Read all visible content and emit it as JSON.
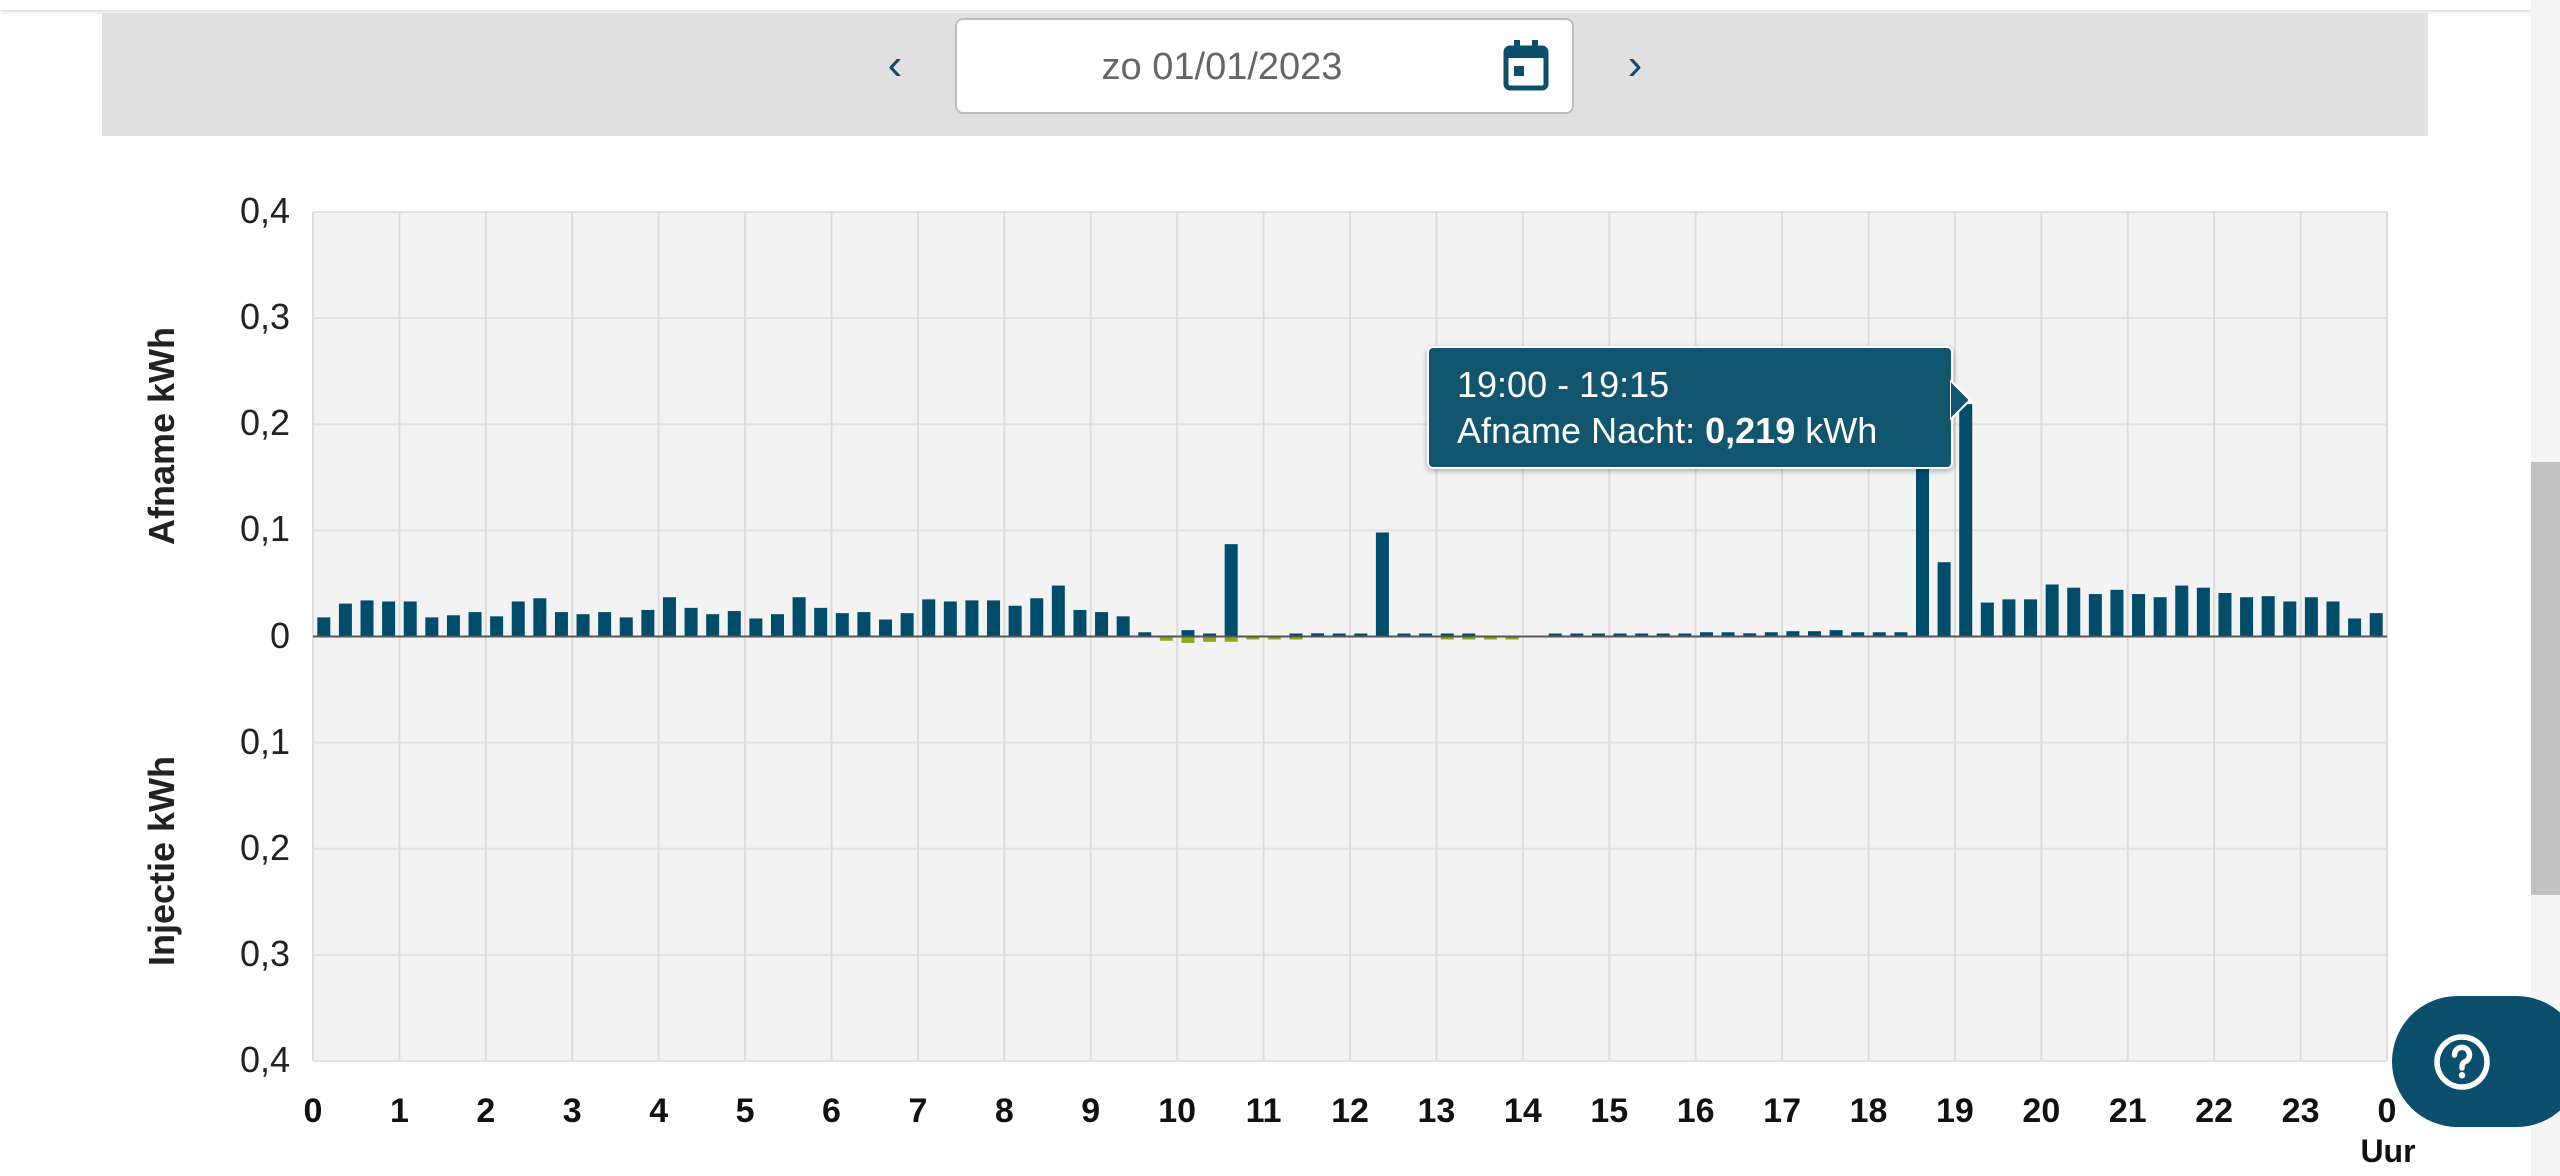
{
  "date_nav": {
    "date": "zo 01/01/2023",
    "prev_icon": "chevron-left-icon",
    "next_icon": "chevron-right-icon",
    "calendar_icon": "calendar-icon"
  },
  "colors": {
    "afname": "#004d6b",
    "injectie": "#8aac1c",
    "tooltip": "#11556e",
    "plot_bg": "#f3f3f3"
  },
  "chart_data": {
    "type": "bar",
    "ylabel_top": "Afname  kWh",
    "ylabel_bottom": "Injectie  kWh",
    "xlabel": "Uur",
    "ylim": [
      -0.4,
      0.4
    ],
    "yticks": [
      "0,4",
      "0,3",
      "0,2",
      "0,1",
      "0",
      "0,1",
      "0,2",
      "0,3",
      "0,4"
    ],
    "xticks": [
      "0",
      "1",
      "2",
      "3",
      "4",
      "5",
      "6",
      "7",
      "8",
      "9",
      "10",
      "11",
      "12",
      "13",
      "14",
      "15",
      "16",
      "17",
      "18",
      "19",
      "20",
      "21",
      "22",
      "23",
      "0"
    ],
    "grid": true,
    "interval_hours": 0.25,
    "series": [
      {
        "key": "afname",
        "values": [
          0.018,
          0.031,
          0.034,
          0.033,
          0.033,
          0.018,
          0.02,
          0.023,
          0.019,
          0.033,
          0.036,
          0.023,
          0.021,
          0.023,
          0.018,
          0.025,
          0.037,
          0.027,
          0.021,
          0.024,
          0.017,
          0.021,
          0.037,
          0.027,
          0.022,
          0.023,
          0.016,
          0.022,
          0.035,
          0.033,
          0.034,
          0.034,
          0.029,
          0.036,
          0.048,
          0.025,
          0.023,
          0.019,
          0.004,
          0,
          0.006,
          0.002,
          0.087,
          0,
          0,
          0.001,
          0.003,
          0.002,
          0.001,
          0.098,
          0.002,
          0.001,
          0.001,
          0.001,
          0,
          0,
          0,
          0.001,
          0.001,
          0.001,
          0.002,
          0.002,
          0.001,
          0.002,
          0.004,
          0.004,
          0.003,
          0.004,
          0.005,
          0.005,
          0.006,
          0.004,
          0.004,
          0.004,
          0.18,
          0.07,
          0.219,
          0.032,
          0.035,
          0.035,
          0.049,
          0.046,
          0.04,
          0.044,
          0.04,
          0.037,
          0.048,
          0.046,
          0.041,
          0.037,
          0.038,
          0.033,
          0.037,
          0.033,
          0.017,
          0.022
        ]
      },
      {
        "key": "injectie",
        "values": [
          0,
          0,
          0,
          0,
          0,
          0,
          0,
          0,
          0,
          0,
          0,
          0,
          0,
          0,
          0,
          0,
          0,
          0,
          0,
          0,
          0,
          0,
          0,
          0,
          0,
          0,
          0,
          0,
          0,
          0,
          0,
          0,
          0,
          0,
          0,
          0,
          0,
          0,
          0,
          0.004,
          0.006,
          0.005,
          0.005,
          0.002,
          0.002,
          0.001,
          0,
          0,
          0,
          0,
          0,
          0,
          0.001,
          0.001,
          0.001,
          0.002,
          0,
          0,
          0,
          0,
          0,
          0,
          0,
          0,
          0,
          0,
          0,
          0,
          0,
          0,
          0,
          0,
          0,
          0,
          0,
          0,
          0,
          0,
          0,
          0,
          0,
          0,
          0,
          0,
          0,
          0,
          0,
          0,
          0,
          0,
          0,
          0,
          0,
          0,
          0,
          0
        ]
      }
    ]
  },
  "tooltip": {
    "time": "19:00 - 19:15",
    "label": "Afname Nacht: ",
    "value": "0,219",
    "unit": " kWh"
  },
  "help_icon": "question-circle-icon"
}
